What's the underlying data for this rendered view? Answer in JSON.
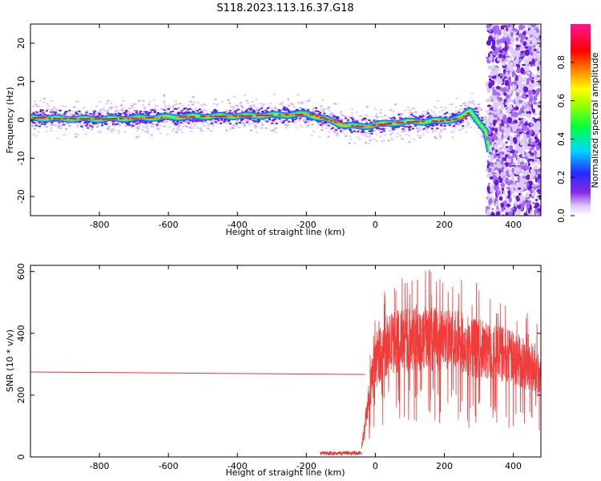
{
  "figure": {
    "title": "S118.2023.113.16.37.G18"
  },
  "chart_data": [
    {
      "type": "heatmap",
      "xlabel": "Height of straight line (km)",
      "ylabel": "Frequency (Hz)",
      "xlim": [
        -1000,
        480
      ],
      "ylim": [
        -25,
        25
      ],
      "xticks": [
        -800,
        -600,
        -400,
        -200,
        0,
        200,
        400
      ],
      "yticks": [
        -20,
        -10,
        0,
        10,
        20
      ],
      "colormap": "rainbow (purple-blue-cyan-green-yellow-red-magenta)",
      "colorbar": {
        "label": "Normalized spectral amplitude",
        "range": [
          0,
          1
        ],
        "ticks": [
          "0.0",
          "0.2",
          "0.4",
          "0.6",
          "0.8"
        ]
      },
      "ridge_x": [
        -1000,
        -900,
        -800,
        -700,
        -600,
        -500,
        -400,
        -300,
        -200,
        -150,
        -100,
        -50,
        0,
        50,
        100,
        150,
        200,
        250,
        275,
        300,
        320,
        335
      ],
      "ridge_y": [
        0.5,
        0.3,
        0.2,
        0.4,
        0.7,
        0.9,
        1.0,
        1.2,
        1.5,
        0.3,
        -1.2,
        -1.8,
        -1.3,
        -0.8,
        -0.5,
        -0.4,
        -0.2,
        0.6,
        2.5,
        -0.5,
        -3.0,
        -10.0
      ]
    },
    {
      "type": "line",
      "xlabel": "Height of straight line (km)",
      "ylabel": "SNR (10 * v/v)",
      "xlim": [
        -1000,
        480
      ],
      "ylim": [
        0,
        620
      ],
      "xticks": [
        -800,
        -600,
        -400,
        -200,
        0,
        200,
        400
      ],
      "yticks": [
        0,
        200,
        400,
        600
      ],
      "line_color": "#f03232",
      "segments": [
        {
          "x": [
            -1000,
            -30
          ],
          "y": [
            275,
            267
          ]
        },
        {
          "x": [
            -160,
            -40
          ],
          "y": [
            12,
            12
          ]
        }
      ],
      "envelope_x": [
        -40,
        -20,
        0,
        20,
        50,
        100,
        150,
        200,
        250,
        300,
        350,
        400,
        450,
        480
      ],
      "envelope_y": [
        30,
        180,
        300,
        350,
        370,
        380,
        385,
        380,
        370,
        350,
        340,
        320,
        290,
        270
      ]
    }
  ]
}
